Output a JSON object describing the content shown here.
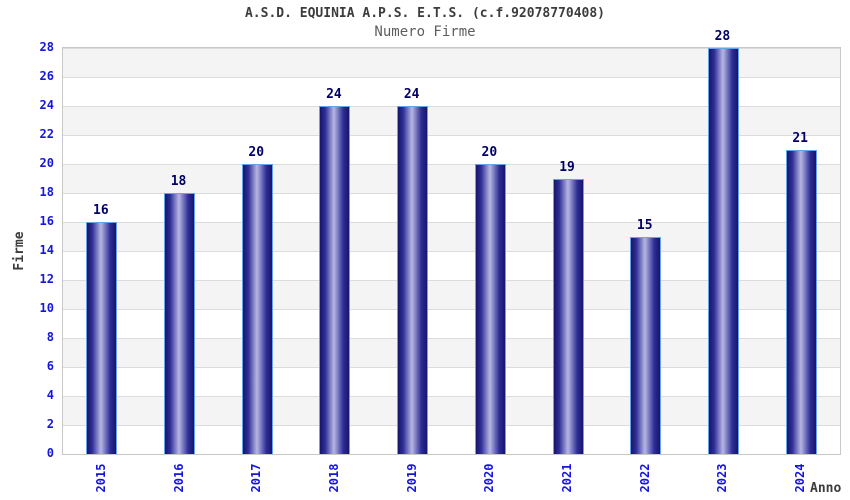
{
  "header": {
    "title": "A.S.D. EQUINIA A.P.S. E.T.S. (c.f.92078770408)",
    "subtitle": "Numero Firme"
  },
  "chart_data": {
    "type": "bar",
    "title": "A.S.D. EQUINIA A.P.S. E.T.S. (c.f.92078770408)",
    "subtitle": "Numero Firme",
    "categories": [
      "2015",
      "2016",
      "2017",
      "2018",
      "2019",
      "2020",
      "2021",
      "2022",
      "2023",
      "2024"
    ],
    "values": [
      16,
      18,
      20,
      24,
      24,
      20,
      19,
      15,
      28,
      21
    ],
    "xlabel": "Anno",
    "ylabel": "Firme",
    "ylim": [
      0,
      28
    ],
    "ytick_step": 2,
    "yticks": [
      0,
      2,
      4,
      6,
      8,
      10,
      12,
      14,
      16,
      18,
      20,
      22,
      24,
      26,
      28
    ],
    "grid": "horizontal alternating bands, gridline every 2 units",
    "legend": "none",
    "colors": {
      "bar_dark": "#16166b",
      "bar_mid": "#2e2e96",
      "bar_light": "#b7b7e3",
      "bar_border": "#66a3e8",
      "tick_label": "#1515dd",
      "value_label": "#000066",
      "band_gray": "#f4f4f4",
      "gridline": "#dcdcdc",
      "frame": "#c8c8c8",
      "title": "#3c3c3c",
      "subtitle": "#5e5e5e"
    }
  }
}
